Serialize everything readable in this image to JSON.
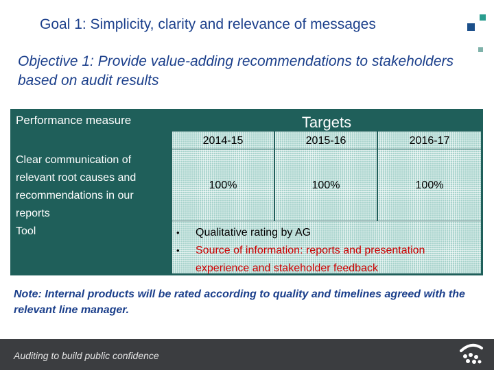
{
  "slide": {
    "title": "Goal 1: Simplicity, clarity and relevance of messages",
    "objective": "Objective 1: Provide value-adding recommendations to stakeholders based on audit results"
  },
  "table": {
    "measure_header": "Performance measure",
    "targets_header": "Targets",
    "years": [
      "2014-15",
      "2015-16",
      "2016-17"
    ],
    "measure_text": "Clear communication of relevant root causes and recommendations in our reports",
    "tool_label": "Tool",
    "values": [
      "100%",
      "100%",
      "100%"
    ],
    "bullets": [
      "Qualitative rating by AG",
      "Source of information: reports and presentation experience and stakeholder feedback"
    ],
    "bullet_glyph": "•"
  },
  "note": "Note: Internal products will be rated according to quality and timelines agreed with the relevant line manager.",
  "footer": {
    "tagline": "Auditing to build public confidence",
    "logo_icon": "auditor-general-logo-icon"
  },
  "colors": {
    "title": "#1b3f8b",
    "table_dark": "#1f5f5a",
    "table_light": "#a7d3cc",
    "bullet_red": "#cc0000",
    "footer_bg": "#3b3d40"
  }
}
